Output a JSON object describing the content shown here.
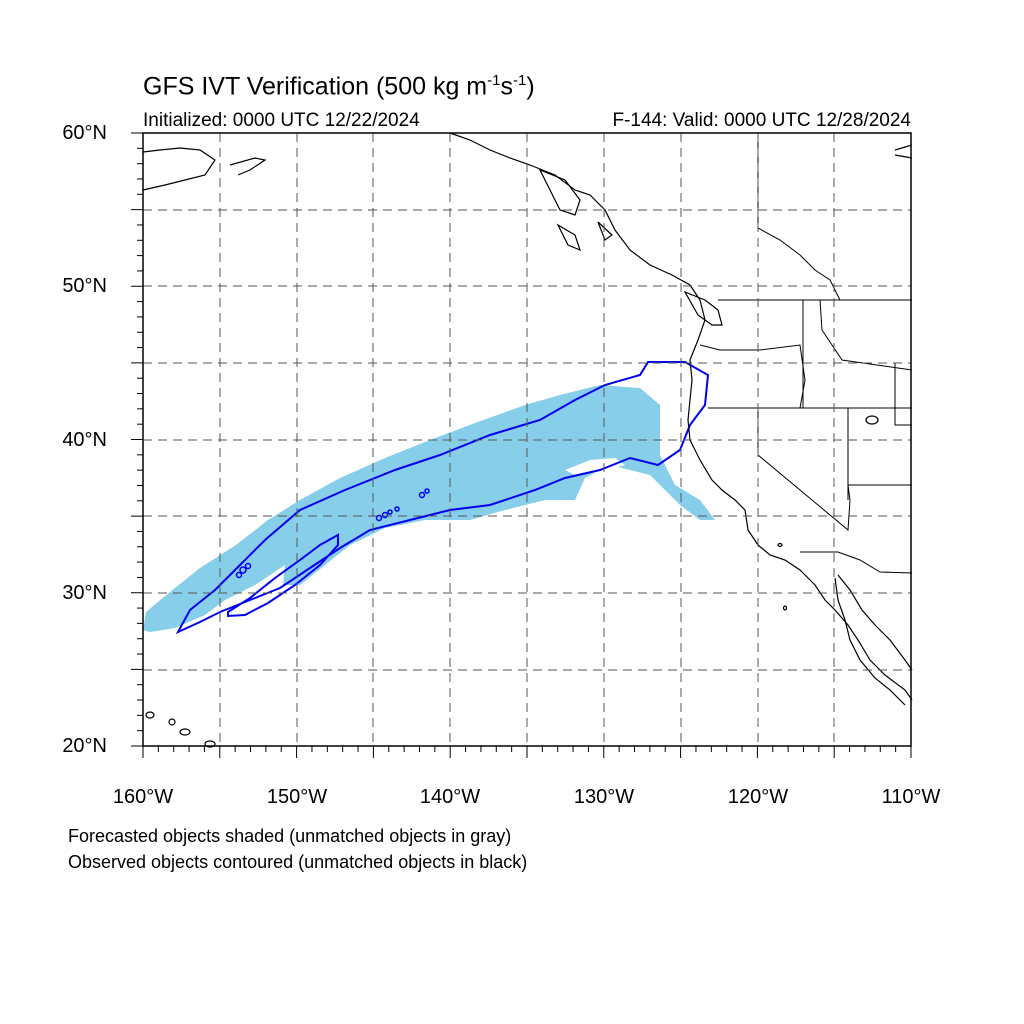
{
  "title": {
    "main": "GFS IVT Verification (500 kg m",
    "sup1": "-1",
    "mid": "s",
    "sup2": "-1",
    "end": ")"
  },
  "subtitle": {
    "initialized": "Initialized: 0000 UTC 12/22/2024",
    "valid": "F-144: Valid: 0000 UTC 12/28/2024"
  },
  "axes": {
    "lat_labels": [
      "60°N",
      "50°N",
      "40°N",
      "30°N",
      "20°N"
    ],
    "lon_labels": [
      "160°W",
      "150°W",
      "140°W",
      "130°W",
      "120°W",
      "110°W"
    ],
    "lat_range": [
      20,
      60
    ],
    "lon_range": [
      -160,
      -110
    ],
    "grid": "dashed every 5 degrees"
  },
  "legend_notes": {
    "line1": "Forecasted objects shaded (unmatched objects in gray)",
    "line2": "Observed objects contoured (unmatched objects in black)"
  },
  "colors": {
    "forecast_fill": "#87ceeb",
    "observed_contour": "#0000ee",
    "coastline": "#000000",
    "grid": "#555555"
  }
}
